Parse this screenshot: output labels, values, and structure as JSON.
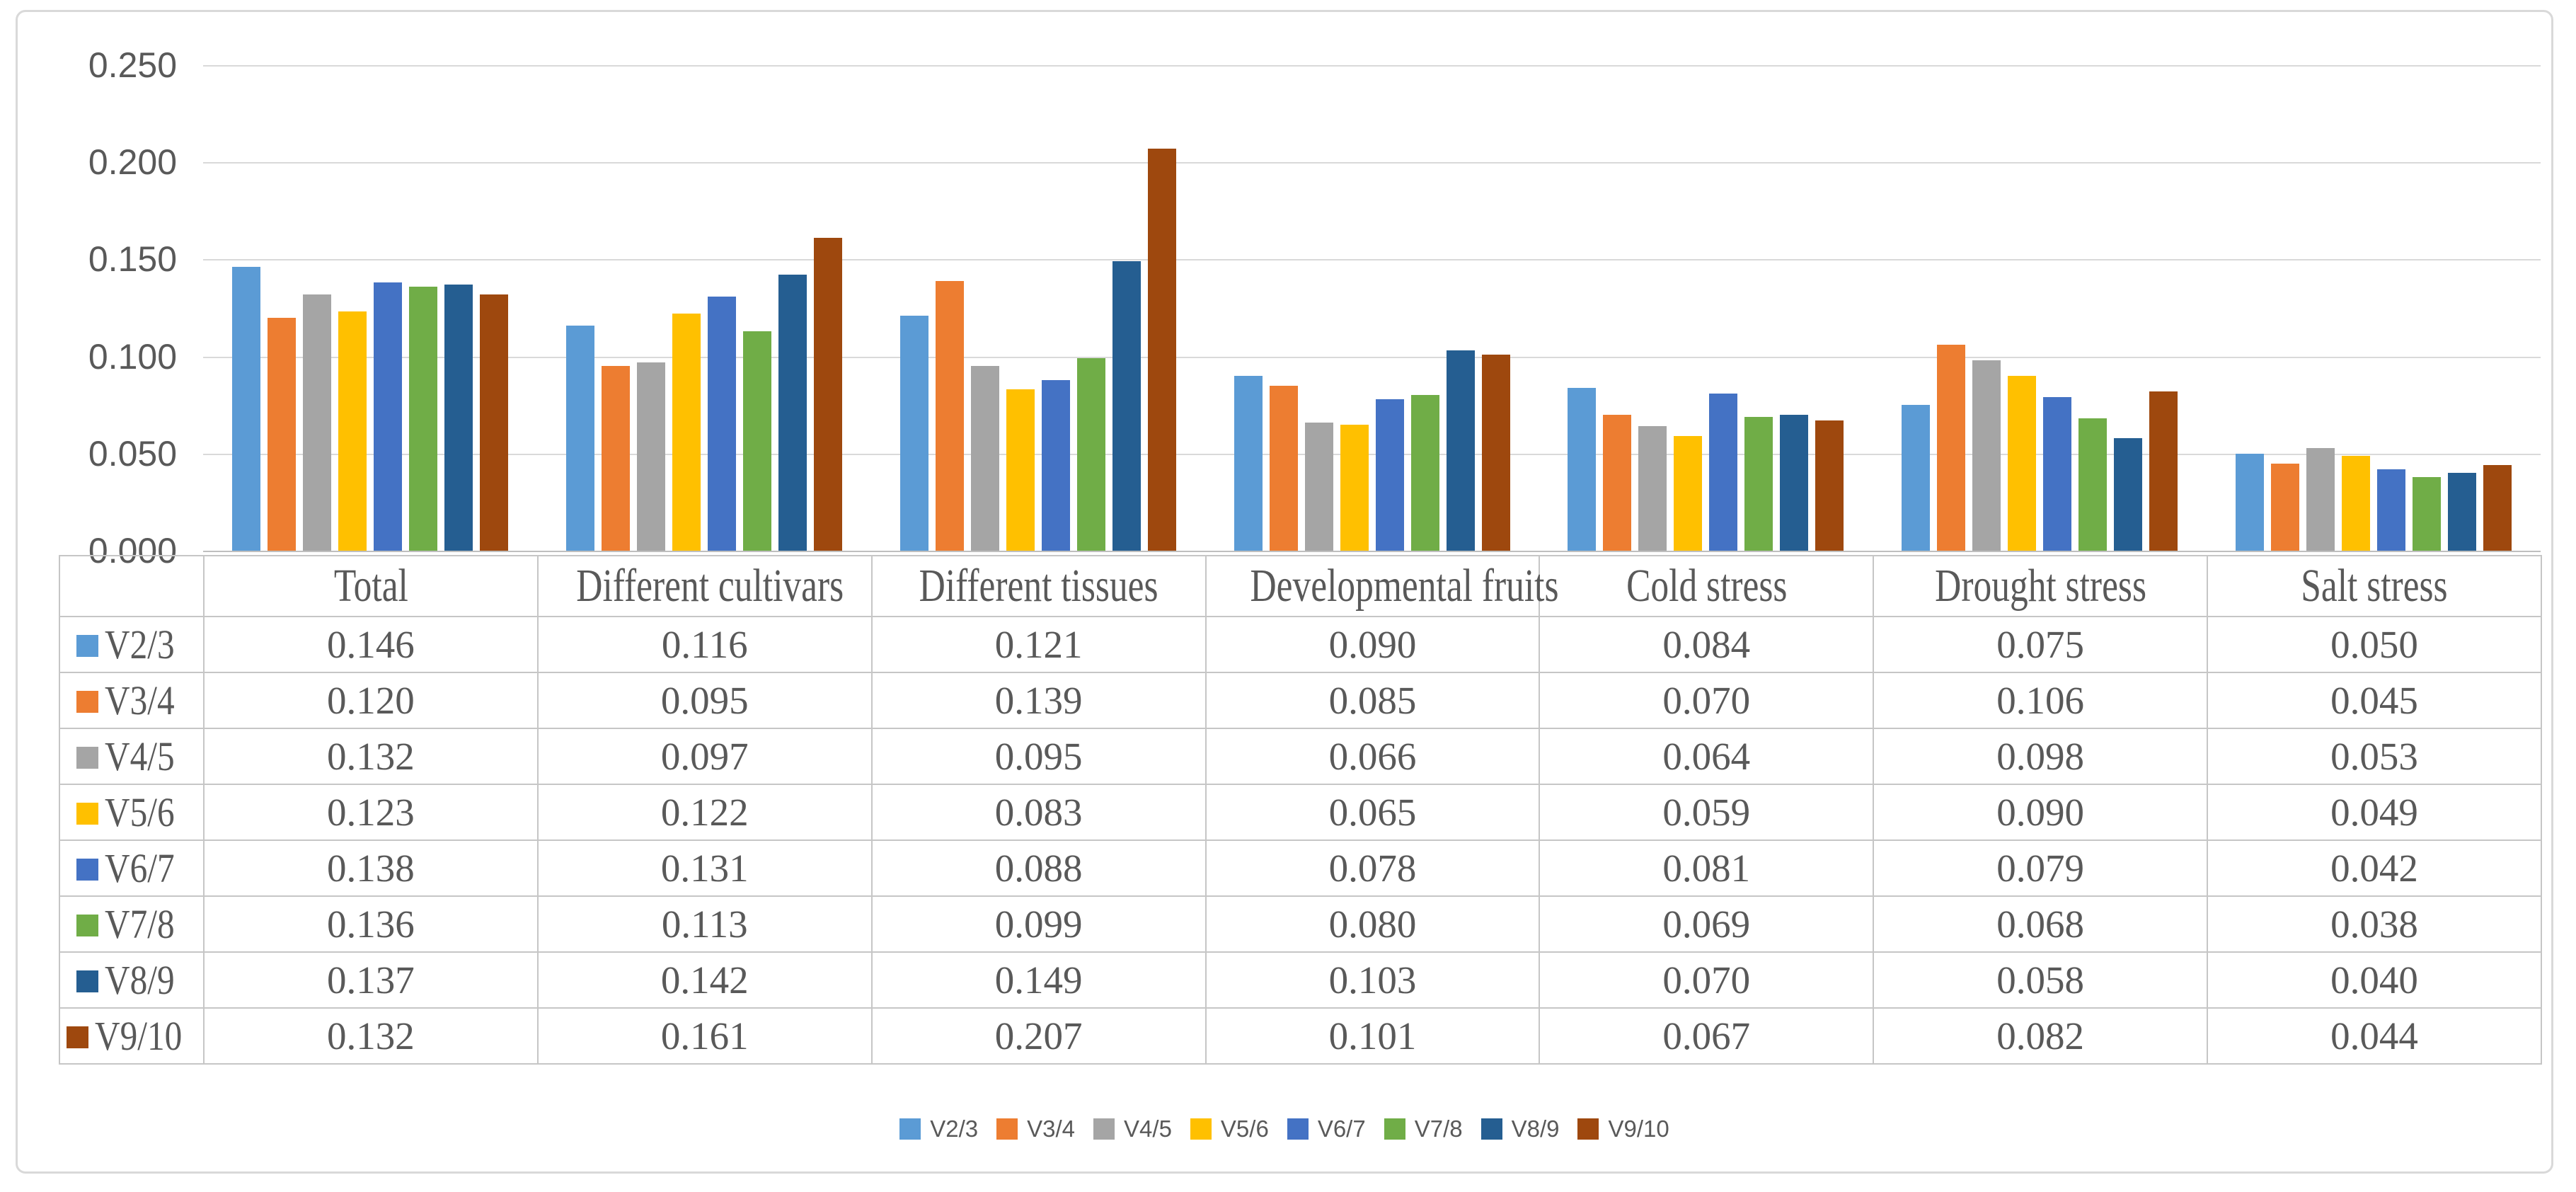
{
  "figure": {
    "background": "#FFFFFF",
    "frame_border_color": "#D9D9D9",
    "text_color": "#595959",
    "gridline_color": "#D9D9D9",
    "axis_line_color": "#BFBFBF",
    "table_border_color": "#C6C6C6"
  },
  "chart_data": {
    "type": "bar",
    "title": "",
    "xlabel": "",
    "ylabel": "",
    "categories": [
      "Total",
      "Different cultivars",
      "Different tissues",
      "Developmental fruits",
      "Cold stress",
      "Drought stress",
      "Salt stress"
    ],
    "series": [
      {
        "name": "V2/3",
        "color": "#5B9BD5",
        "values": [
          0.146,
          0.116,
          0.121,
          0.09,
          0.084,
          0.075,
          0.05
        ]
      },
      {
        "name": "V3/4",
        "color": "#ED7D31",
        "values": [
          0.12,
          0.095,
          0.139,
          0.085,
          0.07,
          0.106,
          0.045
        ]
      },
      {
        "name": "V4/5",
        "color": "#A5A5A5",
        "values": [
          0.132,
          0.097,
          0.095,
          0.066,
          0.064,
          0.098,
          0.053
        ]
      },
      {
        "name": "V5/6",
        "color": "#FFC000",
        "values": [
          0.123,
          0.122,
          0.083,
          0.065,
          0.059,
          0.09,
          0.049
        ]
      },
      {
        "name": "V6/7",
        "color": "#4472C4",
        "values": [
          0.138,
          0.131,
          0.088,
          0.078,
          0.081,
          0.079,
          0.042
        ]
      },
      {
        "name": "V7/8",
        "color": "#70AD47",
        "values": [
          0.136,
          0.113,
          0.099,
          0.08,
          0.069,
          0.068,
          0.038
        ]
      },
      {
        "name": "V8/9",
        "color": "#255E91",
        "values": [
          0.137,
          0.142,
          0.149,
          0.103,
          0.07,
          0.058,
          0.04
        ]
      },
      {
        "name": "V9/10",
        "color": "#9E480E",
        "values": [
          0.132,
          0.161,
          0.207,
          0.101,
          0.067,
          0.082,
          0.044
        ]
      }
    ],
    "y_ticks": [
      "0.250",
      "0.200",
      "0.150",
      "0.100",
      "0.050",
      "0.000"
    ],
    "ylim": [
      0,
      0.25
    ],
    "grid": true,
    "legend_position": "bottom",
    "data_table_shown": true,
    "value_decimals": 3
  }
}
